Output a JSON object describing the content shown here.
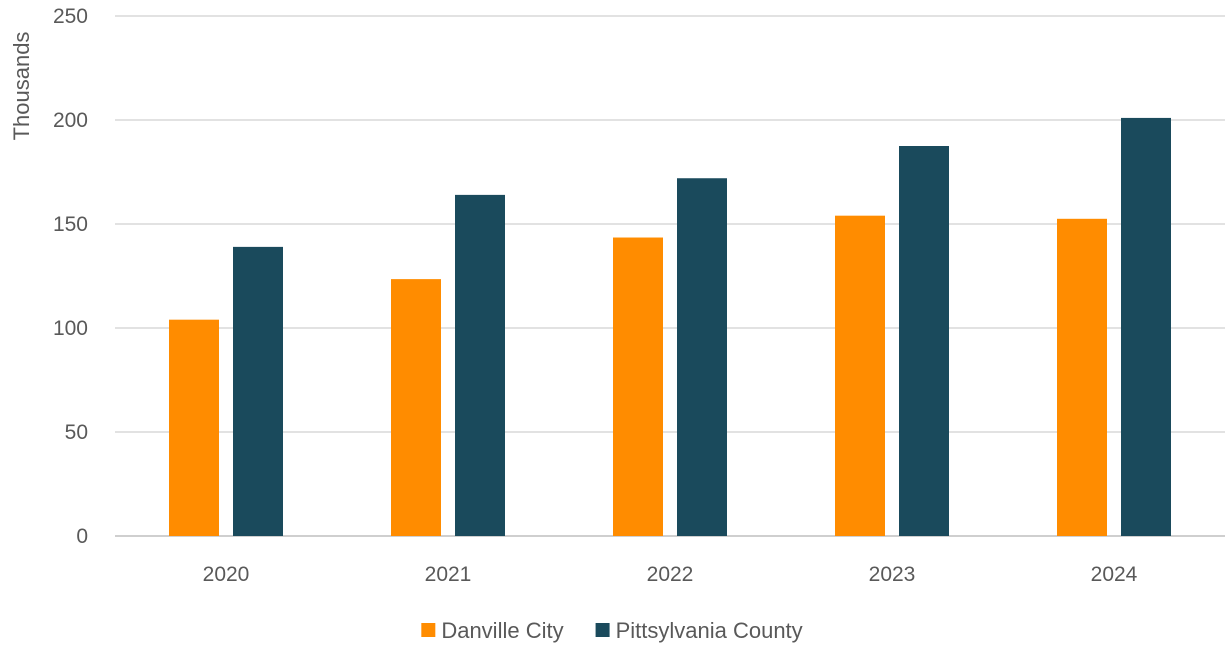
{
  "chart_data": {
    "type": "bar",
    "categories": [
      "2020",
      "2021",
      "2022",
      "2023",
      "2024"
    ],
    "series": [
      {
        "name": "Danville City",
        "color": "#ff8c00",
        "values": [
          104,
          123.5,
          143.5,
          154,
          152.5
        ]
      },
      {
        "name": "Pittsylvania County",
        "color": "#1a4a5c",
        "values": [
          139,
          164,
          172,
          187.5,
          201
        ]
      }
    ],
    "ylabel": "Thousands",
    "ylim": [
      0,
      250
    ],
    "yticks": [
      0,
      50,
      100,
      150,
      200,
      250
    ],
    "grid": true,
    "legend_position": "bottom"
  }
}
